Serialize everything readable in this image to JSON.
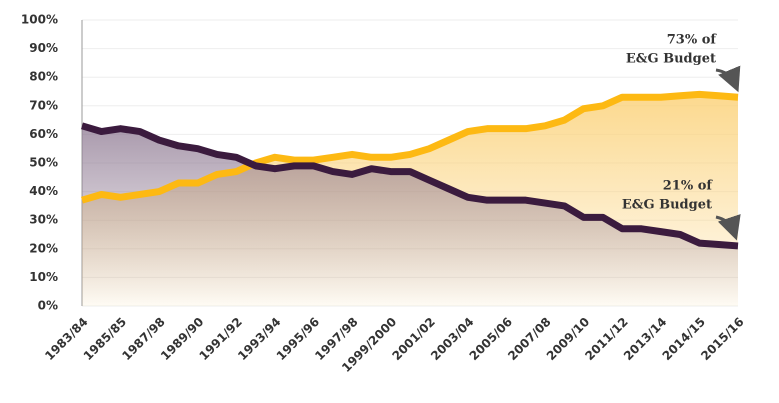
{
  "chart_data": {
    "type": "line",
    "categories": [
      "1983/84",
      null,
      "1985/85",
      null,
      "1987/98",
      null,
      "1989/90",
      null,
      "1991/92",
      null,
      "1993/94",
      null,
      "1995/96",
      null,
      "1997/98",
      null,
      "1999/2000",
      null,
      "2001/02",
      null,
      "2003/04",
      null,
      "2005/06",
      null,
      "2007/08",
      null,
      "2009/10",
      null,
      "2011/12",
      null,
      "2013/14",
      null,
      "2014/15",
      null,
      "2015/16"
    ],
    "series": [
      {
        "color": "#3b1b3e",
        "fill": "#8d7891",
        "values": [
          63,
          61,
          62,
          61,
          58,
          56,
          55,
          53,
          52,
          49,
          48,
          49,
          49,
          47,
          46,
          48,
          47,
          47,
          44,
          41,
          38,
          37,
          37,
          37,
          36,
          35,
          31,
          31,
          27,
          27,
          26,
          25,
          22,
          21.5,
          21
        ]
      },
      {
        "color": "#fdb913",
        "fill": "#fbd27a",
        "values": [
          37,
          39,
          38,
          39,
          40,
          43,
          43,
          46,
          47,
          50,
          52,
          51,
          51,
          52,
          53,
          52,
          52,
          53,
          55,
          58,
          61,
          62,
          62,
          62,
          63,
          65,
          69,
          70,
          73,
          73,
          73,
          73.5,
          74,
          73.5,
          73
        ]
      }
    ],
    "ylim": [
      0,
      100
    ],
    "yticks": [
      {
        "value": 0,
        "label": "0%"
      },
      {
        "value": 10,
        "label": "10%"
      },
      {
        "value": 20,
        "label": "20%"
      },
      {
        "value": 30,
        "label": "30%"
      },
      {
        "value": 40,
        "label": "40%"
      },
      {
        "value": 50,
        "label": "50%"
      },
      {
        "value": 60,
        "label": "60%"
      },
      {
        "value": 70,
        "label": "70%"
      },
      {
        "value": 80,
        "label": "80%"
      },
      {
        "value": 90,
        "label": "90%"
      },
      {
        "value": 100,
        "label": "100%"
      }
    ],
    "grid": true,
    "annotations": [
      {
        "lines": [
          "73% of",
          "E&G Budget"
        ]
      },
      {
        "lines": [
          "21% of",
          "E&G Budget"
        ]
      }
    ]
  }
}
